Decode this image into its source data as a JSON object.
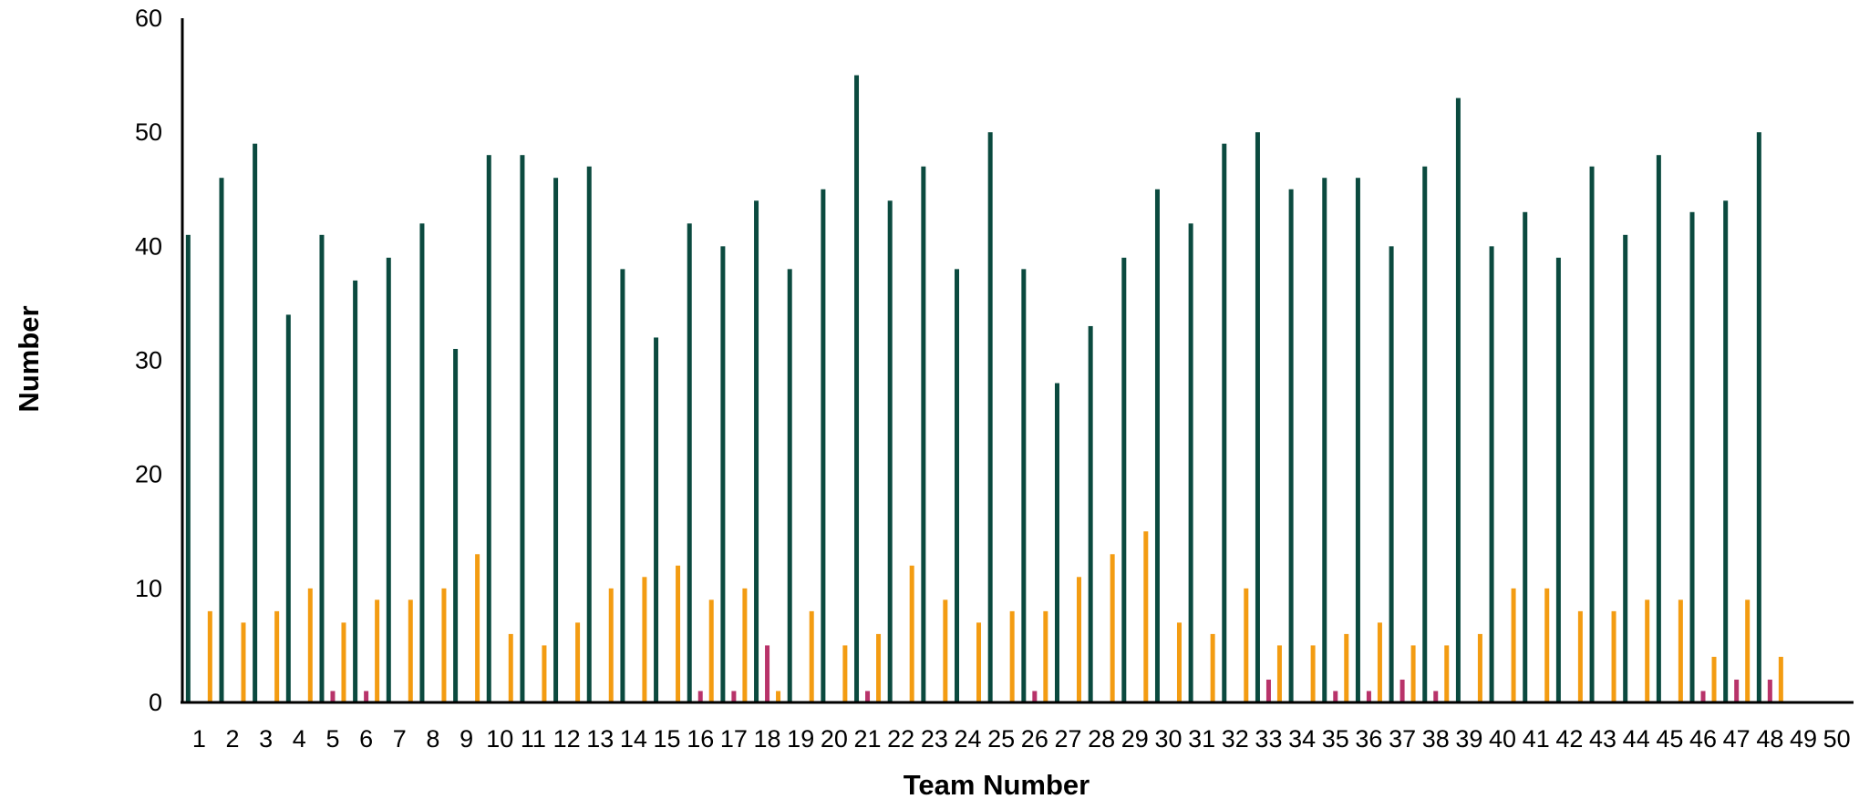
{
  "chart_data": {
    "type": "bar",
    "xlabel": "Team Number",
    "ylabel": "Number",
    "ylim": [
      0,
      60
    ],
    "yticks": [
      0,
      10,
      20,
      30,
      40,
      50,
      60
    ],
    "grid": false,
    "legend": "none",
    "categories": [
      "1",
      "2",
      "3",
      "4",
      "5",
      "6",
      "7",
      "8",
      "9",
      "10",
      "11",
      "12",
      "13",
      "14",
      "15",
      "16",
      "17",
      "18",
      "19",
      "20",
      "21",
      "22",
      "23",
      "24",
      "25",
      "26",
      "27",
      "28",
      "29",
      "30",
      "31",
      "32",
      "33",
      "34",
      "35",
      "36",
      "37",
      "38",
      "39",
      "40",
      "41",
      "42",
      "43",
      "44",
      "45",
      "46",
      "47",
      "48",
      "49",
      "50"
    ],
    "series": [
      {
        "color": "#0b4a3f",
        "values": [
          41,
          46,
          49,
          34,
          41,
          37,
          39,
          42,
          31,
          48,
          48,
          46,
          47,
          38,
          32,
          42,
          40,
          44,
          38,
          45,
          55,
          44,
          47,
          38,
          50,
          38,
          28,
          33,
          39,
          45,
          42,
          49,
          50,
          45,
          46,
          46,
          40,
          47,
          53,
          40,
          43,
          39,
          47,
          41,
          48,
          43,
          44,
          50,
          0,
          0
        ]
      },
      {
        "color": "#b8336a",
        "values": [
          0,
          0,
          0,
          0,
          1,
          1,
          0,
          0,
          0,
          0,
          0,
          0,
          0,
          0,
          0,
          1,
          1,
          5,
          0,
          0,
          1,
          0,
          0,
          0,
          0,
          1,
          0,
          0,
          0,
          0,
          0,
          0,
          2,
          0,
          1,
          1,
          2,
          1,
          0,
          0,
          0,
          0,
          0,
          0,
          0,
          1,
          2,
          2,
          0,
          0
        ]
      },
      {
        "color": "#f39c12",
        "values": [
          8,
          7,
          8,
          10,
          7,
          9,
          9,
          10,
          13,
          6,
          5,
          7,
          10,
          11,
          12,
          9,
          10,
          1,
          8,
          5,
          6,
          12,
          9,
          7,
          8,
          8,
          11,
          13,
          15,
          7,
          6,
          10,
          5,
          5,
          6,
          7,
          5,
          5,
          6,
          10,
          10,
          8,
          8,
          9,
          9,
          4,
          9,
          4,
          0,
          0
        ]
      }
    ]
  }
}
